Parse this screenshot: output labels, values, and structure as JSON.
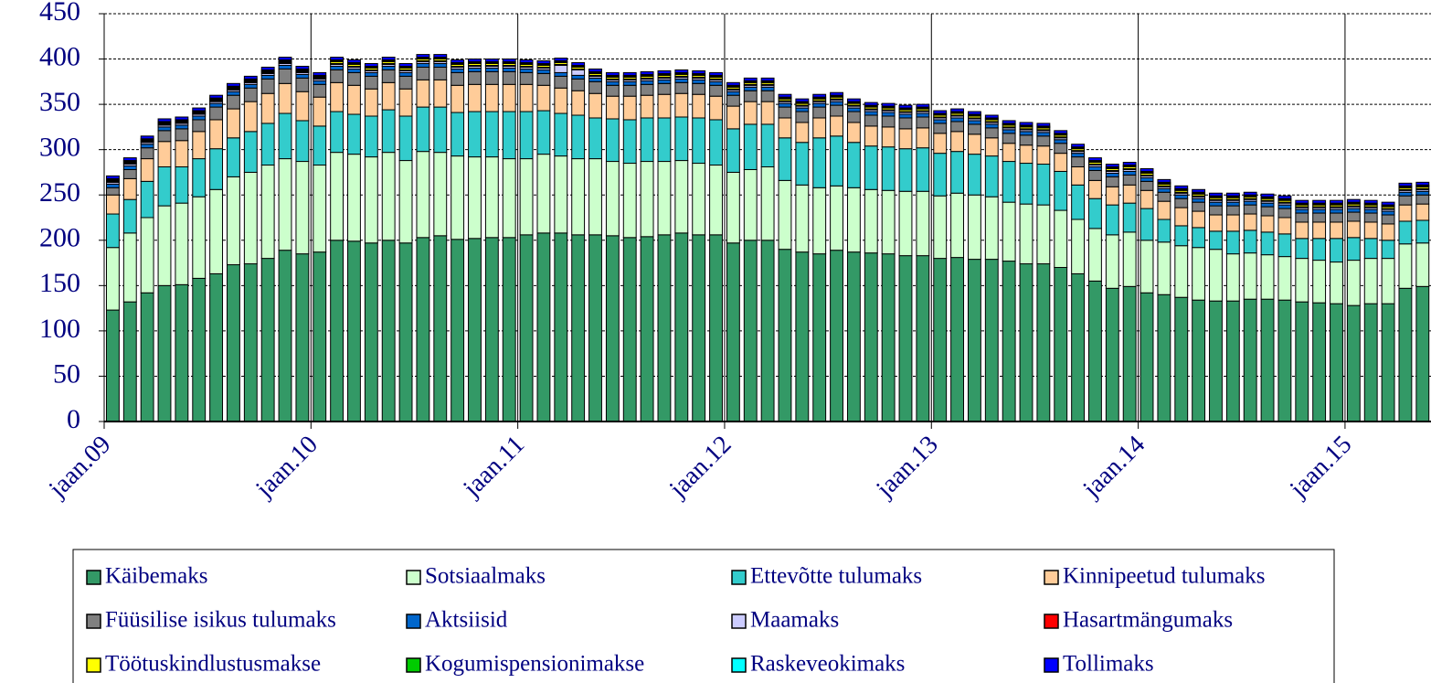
{
  "chart_data": {
    "type": "stacked_bar",
    "categories": [
      "jaan.09",
      null,
      null,
      null,
      null,
      null,
      null,
      null,
      null,
      null,
      null,
      null,
      "jaan.10",
      null,
      null,
      null,
      null,
      null,
      null,
      null,
      null,
      null,
      null,
      null,
      "jaan.11",
      null,
      null,
      null,
      null,
      null,
      null,
      null,
      null,
      null,
      null,
      null,
      "jaan.12",
      null,
      null,
      null,
      null,
      null,
      null,
      null,
      null,
      null,
      null,
      null,
      "jaan.13",
      null,
      null,
      null,
      null,
      null,
      null,
      null,
      null,
      null,
      null,
      null,
      "jaan.14",
      null,
      null,
      null,
      null,
      null,
      null,
      null,
      null,
      null,
      null,
      null,
      "jaan.15",
      null,
      null,
      null,
      null
    ],
    "ylim": [
      0,
      450
    ],
    "yticks": [
      0,
      50,
      100,
      150,
      200,
      250,
      300,
      350,
      400,
      450
    ],
    "grid": true,
    "series": [
      {
        "name": "Käibemaks",
        "color": "#339966",
        "values": [
          123,
          132,
          142,
          150,
          151,
          158,
          163,
          173,
          174,
          180,
          189,
          185,
          187,
          200,
          199,
          197,
          200,
          197,
          203,
          205,
          201,
          202,
          203,
          203,
          206,
          208,
          208,
          206,
          206,
          205,
          203,
          204,
          206,
          208,
          206,
          206,
          197,
          200,
          200,
          190,
          187,
          185,
          189,
          187,
          186,
          185,
          183,
          183,
          180,
          181,
          179,
          179,
          177,
          174,
          174,
          170,
          163,
          155,
          147,
          149,
          142,
          140,
          137,
          134,
          133,
          133,
          135,
          135,
          134,
          132,
          131,
          130,
          128,
          130,
          130,
          147,
          149
        ]
      },
      {
        "name": "Sotsiaalmaks",
        "color": "#ccffcc",
        "values": [
          69,
          76,
          83,
          88,
          90,
          90,
          93,
          97,
          101,
          103,
          101,
          102,
          96,
          97,
          96,
          95,
          97,
          91,
          95,
          92,
          92,
          90,
          89,
          87,
          84,
          87,
          85,
          84,
          84,
          82,
          82,
          83,
          81,
          80,
          79,
          77,
          78,
          78,
          81,
          76,
          74,
          73,
          71,
          71,
          70,
          70,
          71,
          71,
          69,
          71,
          71,
          69,
          65,
          66,
          65,
          63,
          60,
          58,
          59,
          60,
          58,
          58,
          57,
          58,
          57,
          52,
          51,
          49,
          48,
          48,
          47,
          46,
          50,
          50,
          50,
          49,
          48
        ]
      },
      {
        "name": "Ettevõtte tulumaks",
        "color": "#33cccc",
        "values": [
          37,
          37,
          40,
          43,
          40,
          42,
          45,
          43,
          45,
          46,
          50,
          45,
          43,
          45,
          44,
          45,
          47,
          49,
          49,
          50,
          48,
          50,
          50,
          52,
          52,
          48,
          47,
          48,
          45,
          47,
          48,
          48,
          48,
          48,
          50,
          50,
          48,
          50,
          47,
          47,
          47,
          55,
          55,
          50,
          48,
          48,
          47,
          48,
          47,
          46,
          45,
          45,
          45,
          45,
          45,
          43,
          38,
          33,
          33,
          32,
          35,
          25,
          22,
          22,
          20,
          25,
          25,
          25,
          25,
          22,
          24,
          26,
          25,
          22,
          20,
          25,
          25
        ]
      },
      {
        "name": "Kinnipeetud tulumaks",
        "color": "#ffcc99",
        "values": [
          21,
          23,
          25,
          28,
          29,
          30,
          32,
          32,
          33,
          33,
          33,
          32,
          32,
          32,
          32,
          30,
          30,
          30,
          30,
          30,
          30,
          30,
          30,
          30,
          30,
          28,
          28,
          27,
          27,
          25,
          26,
          25,
          26,
          26,
          26,
          26,
          25,
          25,
          25,
          22,
          22,
          22,
          22,
          22,
          22,
          22,
          22,
          22,
          22,
          22,
          22,
          20,
          20,
          20,
          20,
          20,
          20,
          20,
          20,
          20,
          20,
          20,
          20,
          18,
          18,
          18,
          18,
          18,
          18,
          18,
          18,
          18,
          18,
          18,
          18,
          18,
          18
        ]
      },
      {
        "name": "Füüsilise isikus tulumaks",
        "color": "#808080",
        "values": [
          8,
          10,
          12,
          12,
          13,
          13,
          14,
          15,
          15,
          16,
          16,
          15,
          14,
          14,
          14,
          14,
          14,
          14,
          14,
          14,
          14,
          14,
          14,
          14,
          13,
          13,
          13,
          13,
          13,
          12,
          12,
          12,
          12,
          12,
          12,
          12,
          12,
          12,
          12,
          12,
          12,
          12,
          12,
          12,
          12,
          12,
          12,
          12,
          11,
          11,
          11,
          11,
          11,
          11,
          11,
          11,
          11,
          11,
          11,
          11,
          10,
          10,
          10,
          10,
          10,
          10,
          10,
          10,
          10,
          10,
          10,
          10,
          10,
          10,
          10,
          10,
          10
        ]
      },
      {
        "name": "Aktsiisid",
        "color": "#0066cc",
        "values": [
          4,
          4,
          4,
          4,
          4,
          4,
          4,
          4,
          4,
          4,
          4,
          4,
          4,
          4,
          4,
          4,
          4,
          4,
          4,
          4,
          4,
          4,
          4,
          4,
          4,
          4,
          4,
          4,
          4,
          4,
          4,
          4,
          4,
          4,
          4,
          4,
          4,
          4,
          4,
          4,
          4,
          4,
          4,
          4,
          4,
          4,
          4,
          4,
          4,
          4,
          4,
          4,
          4,
          4,
          4,
          4,
          4,
          4,
          4,
          4,
          4,
          4,
          4,
          4,
          4,
          4,
          4,
          4,
          4,
          4,
          4,
          4,
          4,
          4,
          4,
          4,
          4
        ]
      },
      {
        "name": "Maamaks",
        "color": "#ccccff",
        "values": [
          2,
          2,
          2,
          2,
          2,
          2,
          2,
          2,
          2,
          2,
          2,
          2,
          2,
          2,
          2,
          2,
          2,
          2,
          2,
          2,
          2,
          2,
          2,
          2,
          2,
          2,
          8,
          6,
          2,
          2,
          2,
          2,
          2,
          2,
          2,
          2,
          2,
          2,
          2,
          2,
          2,
          2,
          2,
          2,
          2,
          2,
          2,
          2,
          2,
          2,
          2,
          2,
          2,
          2,
          2,
          2,
          2,
          2,
          2,
          2,
          2,
          2,
          2,
          2,
          2,
          2,
          2,
          2,
          2,
          2,
          2,
          2,
          2,
          2,
          2,
          2,
          2
        ]
      },
      {
        "name": "Hasartmängumaks",
        "color": "#ff0000",
        "values": [
          1,
          1,
          1,
          1,
          1,
          1,
          1,
          1,
          1,
          1,
          1,
          1,
          1,
          1,
          1,
          1,
          1,
          1,
          1,
          1,
          1,
          1,
          1,
          1,
          1,
          1,
          1,
          1,
          1,
          1,
          1,
          1,
          1,
          1,
          1,
          1,
          1,
          1,
          1,
          1,
          1,
          1,
          1,
          1,
          1,
          1,
          1,
          1,
          1,
          1,
          1,
          1,
          1,
          1,
          1,
          1,
          1,
          1,
          1,
          1,
          1,
          1,
          1,
          1,
          1,
          1,
          1,
          1,
          1,
          1,
          1,
          1,
          1,
          1,
          1,
          1,
          1
        ]
      },
      {
        "name": "Töötuskindlustusmakse",
        "color": "#ffff00",
        "values": [
          1,
          1,
          1,
          1,
          1,
          1,
          1,
          1,
          1,
          1,
          1,
          1,
          1,
          2,
          2,
          2,
          2,
          2,
          2,
          2,
          2,
          2,
          2,
          2,
          2,
          2,
          2,
          2,
          2,
          2,
          2,
          2,
          2,
          2,
          2,
          2,
          2,
          2,
          2,
          2,
          2,
          2,
          2,
          2,
          2,
          2,
          2,
          2,
          2,
          2,
          2,
          2,
          2,
          2,
          2,
          2,
          2,
          2,
          2,
          2,
          2,
          2,
          2,
          2,
          2,
          2,
          2,
          2,
          2,
          2,
          2,
          2,
          2,
          2,
          2,
          2,
          2
        ]
      },
      {
        "name": "Kogumispensionimakse",
        "color": "#00cc00",
        "values": [
          1,
          1,
          1,
          1,
          1,
          1,
          1,
          1,
          1,
          1,
          1,
          1,
          1,
          1,
          1,
          1,
          1,
          1,
          1,
          1,
          1,
          1,
          1,
          1,
          1,
          1,
          1,
          1,
          1,
          1,
          1,
          1,
          1,
          1,
          1,
          1,
          1,
          1,
          1,
          1,
          1,
          1,
          1,
          1,
          1,
          1,
          1,
          1,
          1,
          1,
          1,
          1,
          1,
          1,
          1,
          1,
          1,
          1,
          1,
          1,
          1,
          1,
          1,
          1,
          1,
          1,
          1,
          1,
          1,
          1,
          1,
          1,
          1,
          1,
          1,
          1,
          1
        ]
      },
      {
        "name": "Raskeveokimaks",
        "color": "#00ffff",
        "values": [
          1,
          1,
          1,
          1,
          1,
          1,
          1,
          1,
          1,
          1,
          1,
          1,
          1,
          1,
          1,
          1,
          1,
          1,
          1,
          1,
          1,
          1,
          1,
          1,
          1,
          1,
          1,
          1,
          1,
          1,
          1,
          1,
          1,
          1,
          1,
          1,
          1,
          1,
          1,
          1,
          1,
          1,
          1,
          1,
          1,
          1,
          1,
          1,
          1,
          1,
          1,
          1,
          1,
          1,
          1,
          1,
          1,
          1,
          1,
          1,
          1,
          1,
          1,
          1,
          1,
          1,
          1,
          1,
          1,
          1,
          1,
          1,
          1,
          1,
          1,
          1,
          1
        ]
      },
      {
        "name": "Tollimaks",
        "color": "#0000ff",
        "values": [
          3,
          3,
          3,
          3,
          3,
          3,
          3,
          3,
          3,
          3,
          3,
          3,
          3,
          3,
          3,
          3,
          3,
          3,
          3,
          3,
          3,
          3,
          3,
          3,
          3,
          3,
          3,
          3,
          3,
          3,
          3,
          3,
          3,
          3,
          3,
          3,
          3,
          3,
          3,
          3,
          3,
          3,
          3,
          3,
          3,
          3,
          3,
          3,
          3,
          3,
          3,
          3,
          3,
          3,
          3,
          3,
          3,
          3,
          3,
          3,
          3,
          3,
          3,
          3,
          3,
          3,
          3,
          3,
          3,
          3,
          3,
          3,
          3,
          3,
          3,
          3,
          3
        ]
      }
    ]
  }
}
